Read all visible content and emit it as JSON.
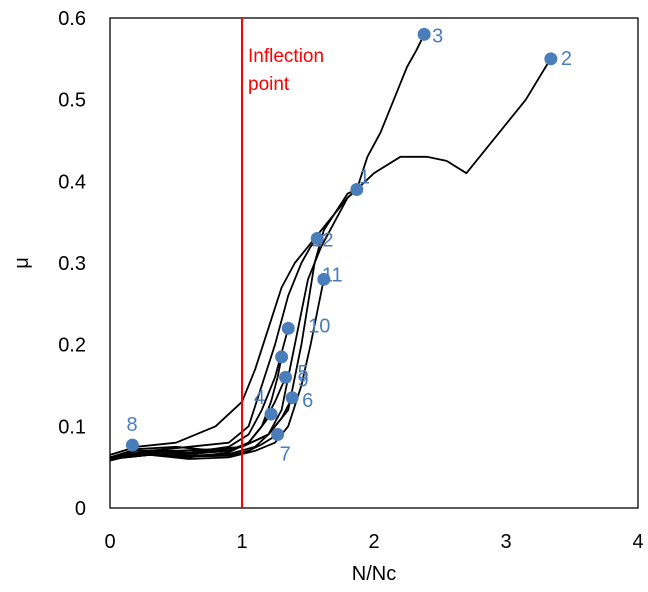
{
  "chart_data": {
    "type": "line",
    "xlabel": "N/Nc",
    "ylabel": "μ",
    "xlim": [
      0,
      4
    ],
    "ylim": [
      0,
      0.6
    ],
    "xticks": [
      "0",
      "1",
      "2",
      "3",
      "4"
    ],
    "yticks": [
      "0",
      "0.1",
      "0.2",
      "0.3",
      "0.4",
      "0.5",
      "0.6"
    ],
    "grid": false,
    "inflection": {
      "x": 1,
      "label": [
        "Inflection",
        "point"
      ],
      "color": "#ff0000"
    },
    "line_color": "#000000",
    "marker_color": "#4a7ebb",
    "series": [
      {
        "points": [
          [
            0,
            0.062
          ],
          [
            0.2,
            0.072
          ],
          [
            0.5,
            0.075
          ],
          [
            0.8,
            0.07
          ],
          [
            1.0,
            0.075
          ],
          [
            1.2,
            0.09
          ],
          [
            1.35,
            0.12
          ],
          [
            1.45,
            0.2
          ],
          [
            1.55,
            0.3
          ],
          [
            1.62,
            0.34
          ],
          [
            1.7,
            0.36
          ],
          [
            1.8,
            0.385
          ],
          [
            1.87,
            0.39
          ],
          [
            2.0,
            0.41
          ],
          [
            2.2,
            0.43
          ],
          [
            2.4,
            0.43
          ],
          [
            2.55,
            0.425
          ],
          [
            2.7,
            0.41
          ],
          [
            2.85,
            0.44
          ],
          [
            3.0,
            0.47
          ],
          [
            3.15,
            0.5
          ],
          [
            3.3,
            0.54
          ],
          [
            3.34,
            0.55
          ]
        ],
        "end": {
          "label": "2",
          "x": 3.34,
          "y": 0.55
        }
      },
      {
        "points": [
          [
            0,
            0.06
          ],
          [
            0.2,
            0.07
          ],
          [
            0.5,
            0.07
          ],
          [
            0.8,
            0.072
          ],
          [
            1.0,
            0.075
          ],
          [
            1.2,
            0.09
          ],
          [
            1.3,
            0.12
          ],
          [
            1.4,
            0.2
          ],
          [
            1.5,
            0.28
          ],
          [
            1.6,
            0.32
          ],
          [
            1.7,
            0.35
          ],
          [
            1.8,
            0.38
          ],
          [
            1.87,
            0.39
          ],
          [
            1.95,
            0.43
          ],
          [
            2.05,
            0.46
          ],
          [
            2.15,
            0.5
          ],
          [
            2.25,
            0.54
          ],
          [
            2.32,
            0.56
          ],
          [
            2.38,
            0.58
          ]
        ],
        "end": {
          "label": "3",
          "x": 2.38,
          "y": 0.58
        }
      },
      {
        "points": [
          [
            0,
            0.065
          ],
          [
            0.2,
            0.075
          ],
          [
            0.5,
            0.08
          ],
          [
            0.8,
            0.1
          ],
          [
            1.0,
            0.13
          ],
          [
            1.1,
            0.17
          ],
          [
            1.2,
            0.22
          ],
          [
            1.3,
            0.27
          ],
          [
            1.4,
            0.3
          ],
          [
            1.5,
            0.32
          ],
          [
            1.6,
            0.34
          ],
          [
            1.7,
            0.36
          ],
          [
            1.8,
            0.38
          ],
          [
            1.87,
            0.39
          ]
        ],
        "end": {
          "label": "1",
          "x": 1.87,
          "y": 0.39
        }
      },
      {
        "points": [
          [
            0,
            0.058
          ],
          [
            0.3,
            0.07
          ],
          [
            0.6,
            0.075
          ],
          [
            0.9,
            0.08
          ],
          [
            1.05,
            0.1
          ],
          [
            1.15,
            0.15
          ],
          [
            1.25,
            0.2
          ],
          [
            1.35,
            0.26
          ],
          [
            1.45,
            0.3
          ],
          [
            1.52,
            0.32
          ],
          [
            1.57,
            0.33
          ]
        ],
        "end": {
          "label": "12",
          "x": 1.57,
          "y": 0.33
        }
      },
      {
        "points": [
          [
            0,
            0.06
          ],
          [
            0.3,
            0.065
          ],
          [
            0.6,
            0.06
          ],
          [
            0.9,
            0.062
          ],
          [
            1.1,
            0.07
          ],
          [
            1.25,
            0.08
          ],
          [
            1.35,
            0.1
          ],
          [
            1.45,
            0.15
          ],
          [
            1.52,
            0.2
          ],
          [
            1.57,
            0.24
          ],
          [
            1.62,
            0.28
          ]
        ],
        "end": {
          "label": "11",
          "x": 1.62,
          "y": 0.28
        }
      },
      {
        "points": [
          [
            0,
            0.06
          ],
          [
            0.3,
            0.07
          ],
          [
            0.6,
            0.068
          ],
          [
            0.9,
            0.075
          ],
          [
            1.05,
            0.09
          ],
          [
            1.15,
            0.12
          ],
          [
            1.25,
            0.16
          ],
          [
            1.3,
            0.19
          ],
          [
            1.35,
            0.22
          ]
        ],
        "end": {
          "label": "10",
          "x": 1.35,
          "y": 0.22
        }
      },
      {
        "points": [
          [
            0,
            0.06
          ],
          [
            0.3,
            0.065
          ],
          [
            0.6,
            0.062
          ],
          [
            0.9,
            0.068
          ],
          [
            1.05,
            0.08
          ],
          [
            1.15,
            0.1
          ],
          [
            1.22,
            0.13
          ],
          [
            1.27,
            0.16
          ],
          [
            1.3,
            0.185
          ]
        ],
        "end": {
          "label": "5",
          "x": 1.3,
          "y": 0.185
        }
      },
      {
        "points": [
          [
            0,
            0.062
          ],
          [
            0.3,
            0.068
          ],
          [
            0.6,
            0.066
          ],
          [
            0.9,
            0.07
          ],
          [
            1.05,
            0.08
          ],
          [
            1.15,
            0.1
          ],
          [
            1.25,
            0.13
          ],
          [
            1.33,
            0.16
          ]
        ],
        "end": {
          "label": "9",
          "x": 1.33,
          "y": 0.16
        }
      },
      {
        "points": [
          [
            0,
            0.06
          ],
          [
            0.3,
            0.066
          ],
          [
            0.6,
            0.064
          ],
          [
            0.9,
            0.066
          ],
          [
            1.1,
            0.075
          ],
          [
            1.2,
            0.09
          ],
          [
            1.3,
            0.11
          ],
          [
            1.38,
            0.135
          ]
        ],
        "end": {
          "label": "6",
          "x": 1.38,
          "y": 0.135
        }
      },
      {
        "points": [
          [
            0,
            0.062
          ],
          [
            0.3,
            0.07
          ],
          [
            0.6,
            0.068
          ],
          [
            0.9,
            0.07
          ],
          [
            1.05,
            0.08
          ],
          [
            1.15,
            0.1
          ],
          [
            1.22,
            0.115
          ]
        ],
        "end": {
          "label": "4",
          "x": 1.22,
          "y": 0.115
        }
      },
      {
        "points": [
          [
            0,
            0.06
          ],
          [
            0.3,
            0.065
          ],
          [
            0.6,
            0.063
          ],
          [
            0.9,
            0.064
          ],
          [
            1.05,
            0.07
          ],
          [
            1.15,
            0.078
          ],
          [
            1.22,
            0.085
          ],
          [
            1.27,
            0.09
          ]
        ],
        "end": {
          "label": "7",
          "x": 1.27,
          "y": 0.09
        }
      }
    ],
    "markers": [
      {
        "label": "8",
        "x": 0.17,
        "y": 0.077
      }
    ]
  }
}
